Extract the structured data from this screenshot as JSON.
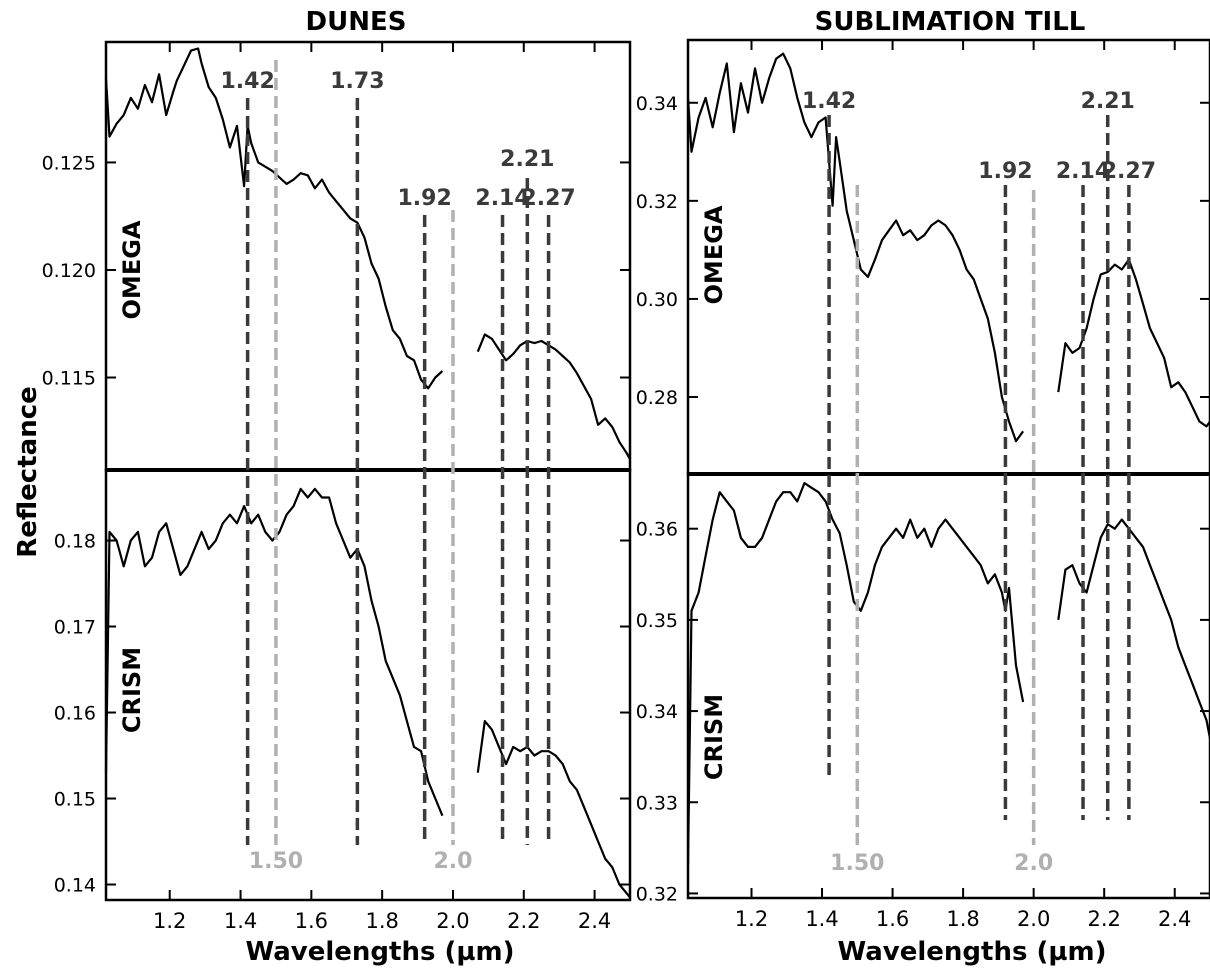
{
  "figure": {
    "ylabel": "Reflectance",
    "xlabel": "Wavelengths (µm)",
    "band_color": "#3a3a3a",
    "ref_color": "#b0b0b0",
    "spectrum_color": "#000000"
  },
  "chart_data": [
    {
      "type": "line",
      "title": "DUNES",
      "xlabel": "Wavelengths (µm)",
      "ylabel": "Reflectance",
      "xlim": [
        1.02,
        2.5
      ],
      "xticks": [
        "1.2",
        "1.4",
        "1.6",
        "1.8",
        "2.0",
        "2.2",
        "2.4"
      ],
      "panels": [
        {
          "instrument": "OMEGA",
          "ylim": [
            0.1107,
            0.1306
          ],
          "yticks": [
            "0.115",
            "0.120",
            "0.125"
          ],
          "series": [
            {
              "x": [
                1.02,
                1.03,
                1.05,
                1.07,
                1.09,
                1.11,
                1.13,
                1.15,
                1.17,
                1.19,
                1.21,
                1.22,
                1.24,
                1.26,
                1.28,
                1.29,
                1.31,
                1.33,
                1.35,
                1.37,
                1.39,
                1.41,
                1.42,
                1.43,
                1.45,
                1.47,
                1.49,
                1.51,
                1.53,
                1.55,
                1.57,
                1.59,
                1.61,
                1.63,
                1.65,
                1.67,
                1.69,
                1.71,
                1.73,
                1.75,
                1.77,
                1.79,
                1.81,
                1.83,
                1.85,
                1.87,
                1.89,
                1.91,
                1.93,
                1.95,
                1.97
              ],
              "y": [
                0.1289,
                0.1262,
                0.1268,
                0.1272,
                0.128,
                0.1275,
                0.1286,
                0.1278,
                0.1291,
                0.1272,
                0.1283,
                0.1288,
                0.1295,
                0.1302,
                0.1303,
                0.1296,
                0.1285,
                0.128,
                0.127,
                0.1257,
                0.1267,
                0.1239,
                0.1267,
                0.1259,
                0.125,
                0.1248,
                0.1246,
                0.1243,
                0.124,
                0.1242,
                0.1245,
                0.1244,
                0.1238,
                0.1242,
                0.1236,
                0.1232,
                0.1228,
                0.1224,
                0.1222,
                0.1215,
                0.1203,
                0.1196,
                0.1183,
                0.1172,
                0.1168,
                0.116,
                0.1158,
                0.1149,
                0.1145,
                0.115,
                0.1153
              ]
            },
            {
              "x": [
                2.07,
                2.09,
                2.11,
                2.13,
                2.15,
                2.17,
                2.19,
                2.21,
                2.23,
                2.25,
                2.27,
                2.29,
                2.31,
                2.33,
                2.35,
                2.37,
                2.39,
                2.41,
                2.43,
                2.45,
                2.47,
                2.49,
                2.5
              ],
              "y": [
                0.1162,
                0.117,
                0.1168,
                0.1163,
                0.1158,
                0.1161,
                0.1165,
                0.1167,
                0.1166,
                0.1167,
                0.1165,
                0.1163,
                0.116,
                0.1157,
                0.1152,
                0.1146,
                0.114,
                0.1128,
                0.1131,
                0.1127,
                0.112,
                0.1115,
                0.1112
              ]
            }
          ]
        },
        {
          "instrument": "CRISM",
          "ylim": [
            0.1382,
            0.1882
          ],
          "yticks": [
            "0.14",
            "0.15",
            "0.16",
            "0.17",
            "0.18"
          ],
          "series": [
            {
              "x": [
                1.02,
                1.03,
                1.05,
                1.07,
                1.09,
                1.11,
                1.13,
                1.15,
                1.17,
                1.19,
                1.21,
                1.23,
                1.25,
                1.27,
                1.29,
                1.31,
                1.33,
                1.35,
                1.37,
                1.39,
                1.41,
                1.43,
                1.45,
                1.47,
                1.49,
                1.51,
                1.53,
                1.55,
                1.57,
                1.59,
                1.61,
                1.63,
                1.65,
                1.67,
                1.69,
                1.71,
                1.73,
                1.75,
                1.77,
                1.79,
                1.81,
                1.83,
                1.85,
                1.87,
                1.89,
                1.91,
                1.93,
                1.95,
                1.97
              ],
              "y": [
                0.153,
                0.181,
                0.18,
                0.177,
                0.18,
                0.181,
                0.177,
                0.178,
                0.181,
                0.182,
                0.179,
                0.176,
                0.177,
                0.179,
                0.181,
                0.179,
                0.18,
                0.182,
                0.183,
                0.182,
                0.184,
                0.182,
                0.183,
                0.181,
                0.18,
                0.181,
                0.183,
                0.184,
                0.186,
                0.185,
                0.186,
                0.185,
                0.185,
                0.182,
                0.18,
                0.178,
                0.179,
                0.177,
                0.173,
                0.17,
                0.166,
                0.164,
                0.162,
                0.159,
                0.156,
                0.1555,
                0.152,
                0.15,
                0.148
              ]
            },
            {
              "x": [
                2.07,
                2.09,
                2.11,
                2.13,
                2.15,
                2.17,
                2.19,
                2.21,
                2.23,
                2.25,
                2.27,
                2.29,
                2.31,
                2.33,
                2.35,
                2.37,
                2.39,
                2.41,
                2.43,
                2.45,
                2.47,
                2.49,
                2.5
              ],
              "y": [
                0.153,
                0.159,
                0.158,
                0.156,
                0.154,
                0.156,
                0.1555,
                0.156,
                0.155,
                0.1555,
                0.1555,
                0.155,
                0.154,
                0.152,
                0.151,
                0.149,
                0.147,
                0.145,
                0.143,
                0.142,
                0.14,
                0.139,
                0.1385
              ]
            }
          ]
        }
      ],
      "bands": [
        {
          "x": 1.42,
          "label": "1.42",
          "style": "dark"
        },
        {
          "x": 1.5,
          "label": "1.50",
          "style": "light"
        },
        {
          "x": 1.73,
          "label": "1.73",
          "style": "dark"
        },
        {
          "x": 1.92,
          "label": "1.92",
          "style": "dark"
        },
        {
          "x": 2.0,
          "label": "2.0",
          "style": "light"
        },
        {
          "x": 2.14,
          "label": "2.14",
          "style": "dark"
        },
        {
          "x": 2.21,
          "label": "2.21",
          "style": "dark"
        },
        {
          "x": 2.27,
          "label": "2.27",
          "style": "dark"
        }
      ]
    },
    {
      "type": "line",
      "title": "SUBLIMATION TILL",
      "xlabel": "Wavelengths (µm)",
      "ylabel": "Reflectance",
      "xlim": [
        1.02,
        2.5
      ],
      "xticks": [
        "1.2",
        "1.4",
        "1.6",
        "1.8",
        "2.0",
        "2.2",
        "2.4"
      ],
      "panels": [
        {
          "instrument": "OMEGA",
          "ylim": [
            0.2643,
            0.3528
          ],
          "yticks": [
            "0.28",
            "0.30",
            "0.32",
            "0.34"
          ],
          "series": [
            {
              "x": [
                1.02,
                1.03,
                1.05,
                1.07,
                1.09,
                1.11,
                1.13,
                1.15,
                1.17,
                1.19,
                1.21,
                1.23,
                1.25,
                1.27,
                1.29,
                1.31,
                1.33,
                1.35,
                1.37,
                1.39,
                1.41,
                1.43,
                1.44,
                1.45,
                1.47,
                1.49,
                1.51,
                1.53,
                1.55,
                1.57,
                1.59,
                1.61,
                1.63,
                1.65,
                1.67,
                1.69,
                1.71,
                1.73,
                1.75,
                1.77,
                1.79,
                1.81,
                1.83,
                1.85,
                1.87,
                1.89,
                1.91,
                1.93,
                1.95,
                1.97
              ],
              "y": [
                0.341,
                0.33,
                0.337,
                0.341,
                0.335,
                0.342,
                0.348,
                0.334,
                0.344,
                0.338,
                0.347,
                0.34,
                0.345,
                0.349,
                0.35,
                0.347,
                0.341,
                0.336,
                0.333,
                0.336,
                0.337,
                0.319,
                0.333,
                0.328,
                0.318,
                0.312,
                0.306,
                0.3045,
                0.308,
                0.312,
                0.314,
                0.316,
                0.313,
                0.314,
                0.312,
                0.313,
                0.315,
                0.316,
                0.315,
                0.313,
                0.31,
                0.306,
                0.304,
                0.3,
                0.296,
                0.289,
                0.28,
                0.275,
                0.271,
                0.273
              ]
            },
            {
              "x": [
                2.07,
                2.09,
                2.11,
                2.13,
                2.15,
                2.17,
                2.19,
                2.21,
                2.23,
                2.25,
                2.27,
                2.29,
                2.31,
                2.33,
                2.35,
                2.37,
                2.39,
                2.41,
                2.43,
                2.45,
                2.47,
                2.49,
                2.5
              ],
              "y": [
                0.281,
                0.291,
                0.289,
                0.29,
                0.294,
                0.3,
                0.305,
                0.3055,
                0.307,
                0.306,
                0.308,
                0.304,
                0.299,
                0.294,
                0.291,
                0.288,
                0.282,
                0.283,
                0.281,
                0.278,
                0.275,
                0.274,
                0.275
              ]
            }
          ]
        },
        {
          "instrument": "CRISM",
          "ylim": [
            0.3195,
            0.366
          ],
          "yticks": [
            "0.32",
            "0.33",
            "0.34",
            "0.35",
            "0.36"
          ],
          "series": [
            {
              "x": [
                1.02,
                1.03,
                1.05,
                1.07,
                1.09,
                1.11,
                1.13,
                1.15,
                1.17,
                1.19,
                1.21,
                1.23,
                1.25,
                1.27,
                1.29,
                1.31,
                1.33,
                1.35,
                1.37,
                1.39,
                1.41,
                1.43,
                1.45,
                1.47,
                1.49,
                1.51,
                1.53,
                1.55,
                1.57,
                1.59,
                1.61,
                1.63,
                1.65,
                1.67,
                1.69,
                1.71,
                1.73,
                1.75,
                1.77,
                1.79,
                1.81,
                1.83,
                1.85,
                1.87,
                1.89,
                1.91,
                1.92,
                1.93,
                1.95,
                1.97
              ],
              "y": [
                0.323,
                0.351,
                0.353,
                0.357,
                0.361,
                0.364,
                0.363,
                0.362,
                0.359,
                0.358,
                0.358,
                0.359,
                0.361,
                0.363,
                0.364,
                0.364,
                0.363,
                0.365,
                0.3645,
                0.364,
                0.363,
                0.361,
                0.3595,
                0.356,
                0.352,
                0.351,
                0.353,
                0.356,
                0.358,
                0.359,
                0.36,
                0.359,
                0.361,
                0.359,
                0.36,
                0.358,
                0.36,
                0.361,
                0.36,
                0.359,
                0.358,
                0.357,
                0.356,
                0.354,
                0.355,
                0.353,
                0.351,
                0.3535,
                0.345,
                0.341
              ]
            },
            {
              "x": [
                2.07,
                2.09,
                2.11,
                2.13,
                2.15,
                2.17,
                2.19,
                2.21,
                2.23,
                2.25,
                2.27,
                2.29,
                2.31,
                2.33,
                2.35,
                2.37,
                2.39,
                2.41,
                2.43,
                2.45,
                2.47,
                2.49,
                2.5
              ],
              "y": [
                0.35,
                0.3555,
                0.356,
                0.354,
                0.353,
                0.356,
                0.359,
                0.3605,
                0.36,
                0.361,
                0.36,
                0.359,
                0.358,
                0.356,
                0.354,
                0.352,
                0.35,
                0.347,
                0.345,
                0.343,
                0.341,
                0.339,
                0.337
              ]
            }
          ]
        }
      ],
      "bands": [
        {
          "x": 1.42,
          "label": "1.42",
          "style": "dark"
        },
        {
          "x": 1.5,
          "label": "1.50",
          "style": "light"
        },
        {
          "x": 1.92,
          "label": "1.92",
          "style": "dark"
        },
        {
          "x": 2.0,
          "label": "2.0",
          "style": "light"
        },
        {
          "x": 2.14,
          "label": "2.14",
          "style": "dark"
        },
        {
          "x": 2.21,
          "label": "2.21",
          "style": "dark"
        },
        {
          "x": 2.27,
          "label": "2.27",
          "style": "dark"
        }
      ]
    }
  ]
}
